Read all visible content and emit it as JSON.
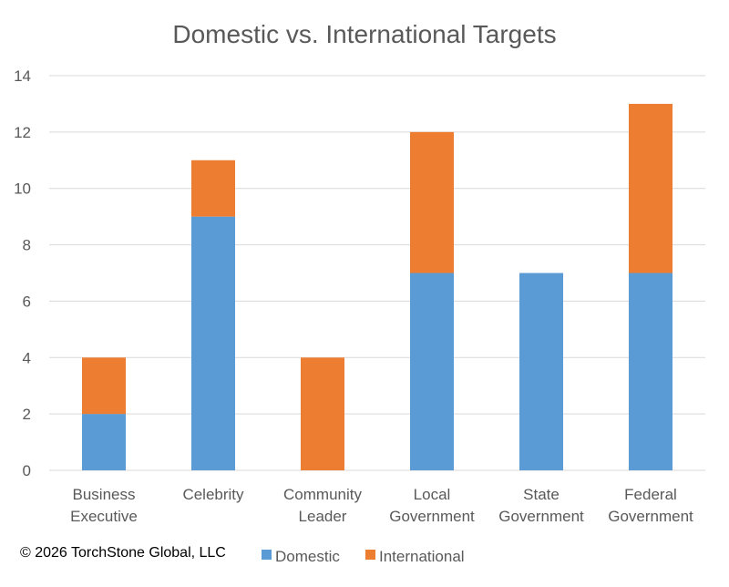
{
  "chart_data": {
    "type": "bar",
    "stacked": true,
    "title": "Domestic vs. International Targets",
    "categories": [
      [
        "Business",
        "Executive"
      ],
      [
        "Celebrity"
      ],
      [
        "Community",
        "Leader"
      ],
      [
        "Local",
        "Government"
      ],
      [
        "State",
        "Government"
      ],
      [
        "Federal",
        "Government"
      ]
    ],
    "series": [
      {
        "name": "Domestic",
        "color": "#5b9bd5",
        "values": [
          2,
          9,
          0,
          7,
          7,
          7
        ]
      },
      {
        "name": "International",
        "color": "#ed7d31",
        "values": [
          2,
          2,
          4,
          5,
          0,
          6
        ]
      }
    ],
    "ylim": [
      0,
      14
    ],
    "yticks": [
      "0",
      "2",
      "4",
      "6",
      "8",
      "10",
      "12",
      "14"
    ],
    "grid": true,
    "legend_position": "bottom"
  },
  "footer": {
    "copyright": "© 2026 TorchStone Global, LLC"
  }
}
